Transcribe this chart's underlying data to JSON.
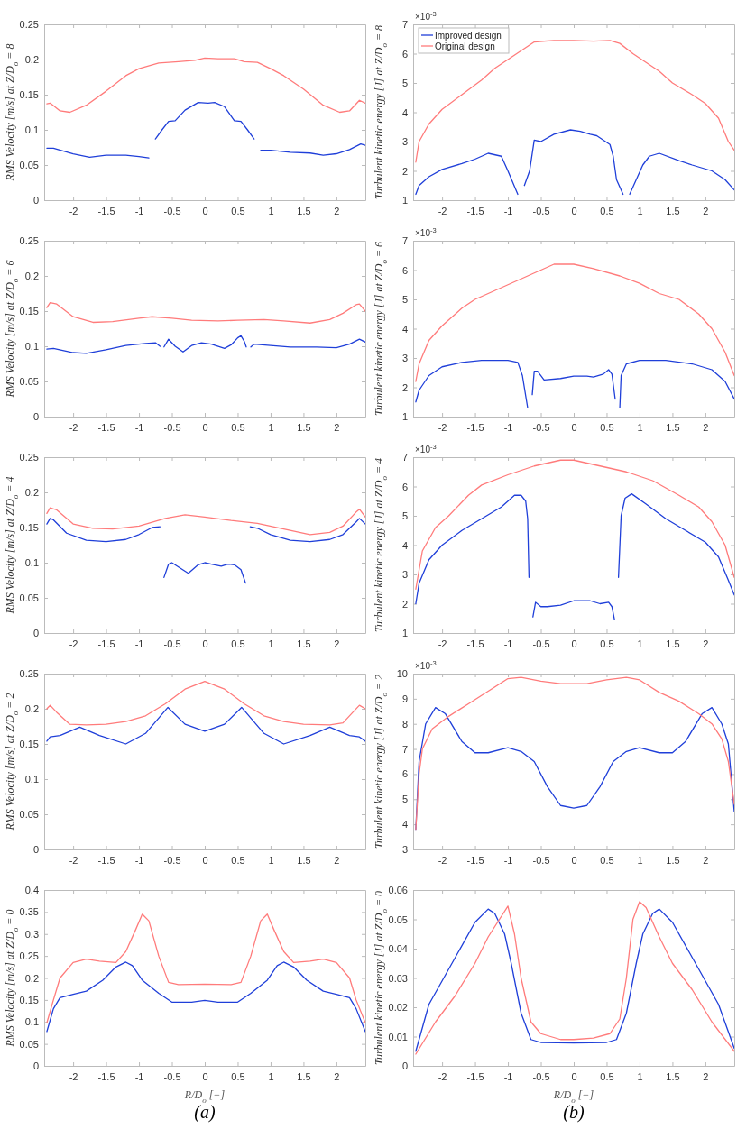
{
  "chart_data": [
    {
      "type": "line",
      "ylabel": "RMS Velocity [m/s] at Z/D$_{o}$ = 8",
      "xlim": [
        -2.44,
        2.44
      ],
      "xticks": [
        -2,
        -1.5,
        -1,
        -0.5,
        0,
        0.5,
        1,
        1.5,
        2
      ],
      "ylim": [
        0,
        0.25
      ],
      "yticks": [
        0,
        0.05,
        0.1,
        0.15,
        0.2,
        0.25
      ],
      "series": [
        {
          "color": "#1f3fd9",
          "x": [
            -2.4,
            -2.3,
            -2.0,
            -1.75,
            -1.5,
            -1.2,
            -1.0,
            -0.85,
            -0.8,
            -0.75,
            -0.65,
            -0.55,
            -0.45,
            -0.3,
            -0.1,
            0.05,
            0.15,
            0.3,
            0.45,
            0.55,
            0.65,
            0.75,
            0.8,
            0.85,
            1.0,
            1.3,
            1.6,
            1.8,
            2.0,
            2.2,
            2.37,
            2.44
          ],
          "values": [
            0.074,
            0.074,
            0.066,
            0.061,
            0.064,
            0.064,
            0.062,
            0.06,
            null,
            0.087,
            0.1,
            0.112,
            0.113,
            0.128,
            0.139,
            0.138,
            0.139,
            0.133,
            0.113,
            0.112,
            0.1,
            0.087,
            null,
            0.071,
            0.071,
            0.068,
            0.067,
            0.064,
            0.066,
            0.072,
            0.08,
            0.078
          ]
        },
        {
          "color": "#ff7b7b",
          "x": [
            -2.4,
            -2.35,
            -2.2,
            -2.05,
            -1.8,
            -1.5,
            -1.2,
            -1.0,
            -0.7,
            -0.4,
            -0.15,
            0,
            0.2,
            0.45,
            0.6,
            0.8,
            1.0,
            1.2,
            1.5,
            1.8,
            2.05,
            2.2,
            2.35,
            2.44
          ],
          "values": [
            0.137,
            0.138,
            0.127,
            0.125,
            0.135,
            0.155,
            0.177,
            0.187,
            0.195,
            0.197,
            0.199,
            0.202,
            0.201,
            0.201,
            0.197,
            0.196,
            0.187,
            0.177,
            0.158,
            0.135,
            0.125,
            0.127,
            0.142,
            0.138
          ]
        }
      ]
    },
    {
      "type": "line",
      "ylabel": "Turbulent kinetic energy [J] at Z/D$_{o}$ = 8",
      "legend": "top left",
      "annotations": [
        "×10$^{-3}$"
      ],
      "xlim": [
        -2.44,
        2.44
      ],
      "xticks": [
        -2,
        -1.5,
        -1,
        -0.5,
        0,
        0.5,
        1,
        1.5,
        2
      ],
      "ylim": [
        1,
        7
      ],
      "yticks": [
        1,
        2,
        3,
        4,
        5,
        6,
        7
      ],
      "series": [
        {
          "name": "Improved design",
          "color": "#1f3fd9",
          "x": [
            -2.4,
            -2.35,
            -2.2,
            -2.0,
            -1.7,
            -1.5,
            -1.3,
            -1.1,
            -1.0,
            -0.85,
            -0.8,
            -0.75,
            -0.67,
            -0.6,
            -0.5,
            -0.3,
            -0.05,
            0.1,
            0.25,
            0.35,
            0.55,
            0.6,
            0.65,
            0.75,
            0.8,
            0.85,
            1.05,
            1.15,
            1.3,
            1.6,
            1.8,
            2.1,
            2.3,
            2.44
          ],
          "values": [
            1.2,
            1.5,
            1.8,
            2.05,
            2.25,
            2.4,
            2.6,
            2.5,
            2.0,
            1.2,
            null,
            1.5,
            2.0,
            3.05,
            3.0,
            3.25,
            3.4,
            3.35,
            3.25,
            3.2,
            2.9,
            2.5,
            1.7,
            1.2,
            null,
            1.2,
            2.2,
            2.5,
            2.6,
            2.35,
            2.2,
            2.0,
            1.7,
            1.35
          ]
        },
        {
          "name": "Original design",
          "color": "#ff7b7b",
          "x": [
            -2.4,
            -2.35,
            -2.2,
            -2.0,
            -1.7,
            -1.4,
            -1.2,
            -1.0,
            -0.8,
            -0.6,
            -0.3,
            0,
            0.3,
            0.55,
            0.7,
            0.9,
            1.1,
            1.3,
            1.5,
            1.8,
            2.0,
            2.2,
            2.35,
            2.44
          ],
          "values": [
            2.3,
            3.0,
            3.6,
            4.1,
            4.6,
            5.1,
            5.5,
            5.8,
            6.1,
            6.4,
            6.45,
            6.45,
            6.43,
            6.45,
            6.35,
            6.0,
            5.7,
            5.4,
            5.0,
            4.6,
            4.3,
            3.8,
            3.0,
            2.7
          ]
        }
      ]
    },
    {
      "type": "line",
      "ylabel": "RMS Velocity [m/s] at Z/D$_{o}$ = 6",
      "xlim": [
        -2.44,
        2.44
      ],
      "xticks": [
        -2,
        -1.5,
        -1,
        -0.5,
        0,
        0.5,
        1,
        1.5,
        2
      ],
      "ylim": [
        0,
        0.25
      ],
      "yticks": [
        0,
        0.05,
        0.1,
        0.15,
        0.2,
        0.25
      ],
      "series": [
        {
          "color": "#1f3fd9",
          "x": [
            -2.4,
            -2.3,
            -2.0,
            -1.8,
            -1.5,
            -1.2,
            -0.9,
            -0.75,
            -0.68,
            -0.66,
            -0.62,
            -0.55,
            -0.45,
            -0.33,
            -0.2,
            -0.05,
            0.1,
            0.3,
            0.4,
            0.5,
            0.55,
            0.6,
            0.63,
            0.66,
            0.7,
            0.75,
            1.0,
            1.3,
            1.7,
            2.0,
            2.2,
            2.35,
            2.44
          ],
          "values": [
            0.096,
            0.097,
            0.091,
            0.09,
            0.095,
            0.101,
            0.104,
            0.105,
            0.1,
            null,
            0.099,
            0.11,
            0.1,
            0.092,
            0.101,
            0.105,
            0.103,
            0.097,
            0.102,
            0.112,
            0.115,
            0.107,
            0.099,
            null,
            0.099,
            0.103,
            0.101,
            0.099,
            0.099,
            0.098,
            0.103,
            0.11,
            0.106
          ]
        },
        {
          "color": "#ff7b7b",
          "x": [
            -2.4,
            -2.35,
            -2.25,
            -2.0,
            -1.7,
            -1.4,
            -1.0,
            -0.8,
            -0.5,
            -0.2,
            0.2,
            0.5,
            0.9,
            1.2,
            1.6,
            1.9,
            2.1,
            2.3,
            2.35,
            2.44
          ],
          "values": [
            0.155,
            0.162,
            0.16,
            0.142,
            0.134,
            0.135,
            0.14,
            0.142,
            0.14,
            0.137,
            0.136,
            0.137,
            0.138,
            0.136,
            0.133,
            0.138,
            0.147,
            0.159,
            0.16,
            0.15
          ]
        }
      ]
    },
    {
      "type": "line",
      "ylabel": "Turbulent kinetic energy [J] at Z/D$_{o}$ = 6",
      "annotations": [
        "×10$^{-3}$"
      ],
      "xlim": [
        -2.44,
        2.44
      ],
      "xticks": [
        -2,
        -1.5,
        -1,
        -0.5,
        0,
        0.5,
        1,
        1.5,
        2
      ],
      "ylim": [
        1,
        7
      ],
      "yticks": [
        1,
        2,
        3,
        4,
        5,
        6,
        7
      ],
      "series": [
        {
          "color": "#1f3fd9",
          "x": [
            -2.4,
            -2.35,
            -2.2,
            -2.0,
            -1.7,
            -1.4,
            -1.0,
            -0.85,
            -0.78,
            -0.7,
            -0.68,
            -0.63,
            -0.6,
            -0.55,
            -0.45,
            -0.2,
            0,
            0.2,
            0.3,
            0.45,
            0.53,
            0.58,
            0.63,
            0.66,
            0.7,
            0.72,
            0.8,
            1.0,
            1.4,
            1.8,
            2.1,
            2.3,
            2.44
          ],
          "values": [
            1.5,
            1.9,
            2.4,
            2.7,
            2.85,
            2.92,
            2.92,
            2.85,
            2.4,
            1.3,
            null,
            1.75,
            2.55,
            2.55,
            2.25,
            2.3,
            2.38,
            2.38,
            2.35,
            2.45,
            2.6,
            2.45,
            1.6,
            null,
            1.3,
            2.4,
            2.8,
            2.92,
            2.92,
            2.8,
            2.6,
            2.2,
            1.6
          ]
        },
        {
          "color": "#ff7b7b",
          "x": [
            -2.4,
            -2.35,
            -2.2,
            -2.0,
            -1.7,
            -1.5,
            -1.2,
            -0.9,
            -0.6,
            -0.3,
            0,
            0.3,
            0.7,
            1.0,
            1.3,
            1.6,
            1.9,
            2.1,
            2.3,
            2.44
          ],
          "values": [
            2.2,
            2.8,
            3.6,
            4.1,
            4.7,
            5.0,
            5.3,
            5.6,
            5.9,
            6.2,
            6.2,
            6.05,
            5.8,
            5.55,
            5.2,
            5.0,
            4.5,
            4.0,
            3.2,
            2.4
          ]
        }
      ]
    },
    {
      "type": "line",
      "ylabel": "RMS Velocity [m/s] at Z/D$_{o}$ = 4",
      "xlim": [
        -2.44,
        2.44
      ],
      "xticks": [
        -2,
        -1.5,
        -1,
        -0.5,
        0,
        0.5,
        1,
        1.5,
        2
      ],
      "ylim": [
        0,
        0.25
      ],
      "yticks": [
        0,
        0.05,
        0.1,
        0.15,
        0.2,
        0.25
      ],
      "series": [
        {
          "color": "#1f3fd9",
          "x": [
            -2.4,
            -2.35,
            -2.3,
            -2.1,
            -1.8,
            -1.5,
            -1.2,
            -1.0,
            -0.8,
            -0.68,
            -0.65,
            -0.62,
            -0.55,
            -0.5,
            -0.4,
            -0.25,
            -0.1,
            0,
            0.1,
            0.25,
            0.35,
            0.45,
            0.55,
            0.62,
            0.65,
            0.69,
            0.8,
            1.0,
            1.3,
            1.6,
            1.9,
            2.1,
            2.3,
            2.35,
            2.44
          ],
          "values": [
            0.155,
            0.163,
            0.161,
            0.142,
            0.132,
            0.13,
            0.133,
            0.14,
            0.15,
            0.151,
            null,
            0.079,
            0.098,
            0.1,
            0.094,
            0.085,
            0.097,
            0.1,
            0.098,
            0.095,
            0.098,
            0.097,
            0.09,
            0.071,
            null,
            0.151,
            0.149,
            0.14,
            0.132,
            0.13,
            0.133,
            0.14,
            0.158,
            0.163,
            0.155
          ]
        },
        {
          "color": "#ff7b7b",
          "x": [
            -2.4,
            -2.35,
            -2.25,
            -2.0,
            -1.7,
            -1.4,
            -1.0,
            -0.6,
            -0.3,
            0,
            0.4,
            0.8,
            1.2,
            1.6,
            1.9,
            2.1,
            2.3,
            2.35,
            2.44
          ],
          "values": [
            0.17,
            0.178,
            0.175,
            0.155,
            0.149,
            0.148,
            0.152,
            0.163,
            0.168,
            0.165,
            0.16,
            0.156,
            0.148,
            0.14,
            0.143,
            0.152,
            0.172,
            0.176,
            0.165
          ]
        }
      ]
    },
    {
      "type": "line",
      "ylabel": "Turbulent kinetic energy [J] at Z/D$_{o}$ = 4",
      "annotations": [
        "×10$^{-3}$"
      ],
      "xlim": [
        -2.44,
        2.44
      ],
      "xticks": [
        -2,
        -1.5,
        -1,
        -0.5,
        0,
        0.5,
        1,
        1.5,
        2
      ],
      "ylim": [
        1,
        7
      ],
      "yticks": [
        1,
        2,
        3,
        4,
        5,
        6,
        7
      ],
      "series": [
        {
          "color": "#1f3fd9",
          "x": [
            -2.4,
            -2.35,
            -2.2,
            -2.0,
            -1.7,
            -1.4,
            -1.1,
            -0.9,
            -0.8,
            -0.73,
            -0.7,
            -0.68,
            -0.66,
            -0.62,
            -0.58,
            -0.5,
            -0.4,
            -0.2,
            0,
            0.25,
            0.4,
            0.53,
            0.58,
            0.62,
            0.65,
            0.68,
            0.72,
            0.78,
            0.88,
            1.1,
            1.4,
            1.7,
            2.0,
            2.2,
            2.35,
            2.44
          ],
          "values": [
            2.0,
            2.7,
            3.5,
            4.0,
            4.5,
            4.9,
            5.3,
            5.7,
            5.7,
            5.5,
            4.9,
            2.9,
            null,
            1.55,
            2.05,
            1.9,
            1.9,
            1.95,
            2.1,
            2.1,
            2.0,
            2.05,
            1.9,
            1.45,
            null,
            2.9,
            5.0,
            5.6,
            5.75,
            5.4,
            4.9,
            4.5,
            4.1,
            3.6,
            2.8,
            2.3
          ]
        },
        {
          "color": "#ff7b7b",
          "x": [
            -2.4,
            -2.3,
            -2.1,
            -1.9,
            -1.6,
            -1.4,
            -1.0,
            -0.6,
            -0.2,
            0,
            0.4,
            0.8,
            1.2,
            1.6,
            1.9,
            2.1,
            2.3,
            2.44
          ],
          "values": [
            2.5,
            3.8,
            4.6,
            5.0,
            5.7,
            6.05,
            6.4,
            6.7,
            6.9,
            6.9,
            6.7,
            6.5,
            6.2,
            5.7,
            5.3,
            4.8,
            4.0,
            2.9
          ]
        }
      ]
    },
    {
      "type": "line",
      "ylabel": "RMS Velocity [m/s] at Z/D$_{o}$ = 2",
      "xlim": [
        -2.44,
        2.44
      ],
      "xticks": [
        -2,
        -1.5,
        -1,
        -0.5,
        0,
        0.5,
        1,
        1.5,
        2
      ],
      "ylim": [
        0,
        0.25
      ],
      "yticks": [
        0,
        0.05,
        0.1,
        0.15,
        0.2,
        0.25
      ],
      "series": [
        {
          "color": "#1f3fd9",
          "x": [
            -2.4,
            -2.35,
            -2.2,
            -1.9,
            -1.6,
            -1.2,
            -0.9,
            -0.56,
            -0.3,
            0,
            0.3,
            0.56,
            0.9,
            1.2,
            1.6,
            1.9,
            2.2,
            2.35,
            2.44
          ],
          "values": [
            0.154,
            0.16,
            0.162,
            0.174,
            0.162,
            0.15,
            0.165,
            0.202,
            0.178,
            0.168,
            0.178,
            0.202,
            0.165,
            0.15,
            0.162,
            0.174,
            0.162,
            0.16,
            0.154
          ]
        },
        {
          "color": "#ff7b7b",
          "x": [
            -2.4,
            -2.35,
            -2.25,
            -2.05,
            -1.8,
            -1.5,
            -1.2,
            -0.9,
            -0.6,
            -0.3,
            0,
            0.3,
            0.6,
            0.9,
            1.2,
            1.5,
            1.9,
            2.1,
            2.25,
            2.35,
            2.44
          ],
          "values": [
            0.2,
            0.205,
            0.195,
            0.178,
            0.177,
            0.178,
            0.182,
            0.19,
            0.207,
            0.228,
            0.239,
            0.228,
            0.207,
            0.19,
            0.182,
            0.178,
            0.177,
            0.18,
            0.195,
            0.205,
            0.2
          ]
        }
      ]
    },
    {
      "type": "line",
      "ylabel": "Turbulent kinetic energy [J] at Z/D$_{o}$ = 2",
      "annotations": [
        "×10$^{-3}$"
      ],
      "xlim": [
        -2.44,
        2.44
      ],
      "xticks": [
        -2,
        -1.5,
        -1,
        -0.5,
        0,
        0.5,
        1,
        1.5,
        2
      ],
      "ylim": [
        3,
        10
      ],
      "yticks": [
        3,
        4,
        5,
        6,
        7,
        8,
        9,
        10
      ],
      "series": [
        {
          "color": "#1f3fd9",
          "x": [
            -2.4,
            -2.35,
            -2.25,
            -2.1,
            -1.95,
            -1.7,
            -1.5,
            -1.3,
            -1.0,
            -0.8,
            -0.6,
            -0.4,
            -0.2,
            0,
            0.2,
            0.4,
            0.6,
            0.8,
            1.0,
            1.3,
            1.5,
            1.7,
            1.95,
            2.1,
            2.25,
            2.35,
            2.44
          ],
          "values": [
            3.8,
            6.5,
            8.0,
            8.65,
            8.4,
            7.3,
            6.85,
            6.85,
            7.05,
            6.9,
            6.5,
            5.5,
            4.75,
            4.65,
            4.75,
            5.5,
            6.5,
            6.9,
            7.05,
            6.85,
            6.85,
            7.3,
            8.4,
            8.65,
            8.0,
            7.2,
            4.5
          ]
        },
        {
          "color": "#ff7b7b",
          "x": [
            -2.4,
            -2.35,
            -2.3,
            -2.15,
            -1.9,
            -1.6,
            -1.3,
            -1.0,
            -0.8,
            -0.5,
            -0.2,
            0,
            0.2,
            0.5,
            0.8,
            1.0,
            1.3,
            1.6,
            1.9,
            2.1,
            2.25,
            2.35,
            2.44
          ],
          "values": [
            3.8,
            6.0,
            7.0,
            7.8,
            8.3,
            8.8,
            9.3,
            9.8,
            9.85,
            9.7,
            9.6,
            9.6,
            9.6,
            9.75,
            9.85,
            9.75,
            9.25,
            8.9,
            8.4,
            8.0,
            7.4,
            6.5,
            4.8
          ]
        }
      ]
    },
    {
      "type": "line",
      "ylabel": "RMS Velocity [m/s] at Z/D$_{o}$ = 0",
      "xlabel": "R/D$_{o}$ [−]",
      "annotations": [
        "(a)"
      ],
      "xlim": [
        -2.44,
        2.44
      ],
      "xticks": [
        -2,
        -1.5,
        -1,
        -0.5,
        0,
        0.5,
        1,
        1.5,
        2
      ],
      "ylim": [
        0,
        0.4
      ],
      "yticks": [
        0,
        0.05,
        0.1,
        0.15,
        0.2,
        0.25,
        0.3,
        0.35,
        0.4
      ],
      "series": [
        {
          "color": "#1f3fd9",
          "x": [
            -2.4,
            -2.3,
            -2.2,
            -2.0,
            -1.8,
            -1.55,
            -1.35,
            -1.2,
            -1.1,
            -0.95,
            -0.7,
            -0.5,
            -0.2,
            0,
            0.2,
            0.5,
            0.7,
            0.95,
            1.1,
            1.2,
            1.35,
            1.55,
            1.8,
            2.0,
            2.2,
            2.3,
            2.44
          ],
          "values": [
            0.078,
            0.13,
            0.155,
            0.163,
            0.17,
            0.195,
            0.225,
            0.236,
            0.228,
            0.195,
            0.165,
            0.145,
            0.145,
            0.149,
            0.145,
            0.145,
            0.165,
            0.195,
            0.228,
            0.236,
            0.225,
            0.195,
            0.17,
            0.163,
            0.155,
            0.13,
            0.078
          ]
        },
        {
          "color": "#ff7b7b",
          "x": [
            -2.4,
            -2.3,
            -2.2,
            -2.0,
            -1.8,
            -1.6,
            -1.35,
            -1.2,
            -1.05,
            -0.95,
            -0.85,
            -0.7,
            -0.55,
            -0.4,
            0,
            0.4,
            0.55,
            0.7,
            0.85,
            0.95,
            1.05,
            1.2,
            1.35,
            1.6,
            1.8,
            2.0,
            2.2,
            2.3,
            2.44
          ],
          "values": [
            0.098,
            0.15,
            0.2,
            0.235,
            0.243,
            0.238,
            0.235,
            0.26,
            0.31,
            0.345,
            0.33,
            0.25,
            0.19,
            0.185,
            0.186,
            0.185,
            0.19,
            0.25,
            0.33,
            0.345,
            0.31,
            0.26,
            0.235,
            0.238,
            0.243,
            0.235,
            0.2,
            0.15,
            0.098
          ]
        }
      ]
    },
    {
      "type": "line",
      "ylabel": "Turbulent kinetic energy [J] at Z/D$_{o}$ = 0",
      "xlabel": "R/D$_{o}$ [−]",
      "annotations": [
        "(b)"
      ],
      "xlim": [
        -2.44,
        2.44
      ],
      "xticks": [
        -2,
        -1.5,
        -1,
        -0.5,
        0,
        0.5,
        1,
        1.5,
        2
      ],
      "ylim": [
        0,
        0.06
      ],
      "yticks": [
        0,
        0.01,
        0.02,
        0.03,
        0.04,
        0.05,
        0.06
      ],
      "series": [
        {
          "color": "#1f3fd9",
          "x": [
            -2.4,
            -2.2,
            -1.8,
            -1.5,
            -1.3,
            -1.2,
            -1.05,
            -0.95,
            -0.8,
            -0.65,
            -0.5,
            0,
            0.5,
            0.65,
            0.8,
            0.95,
            1.05,
            1.2,
            1.3,
            1.5,
            1.8,
            2.2,
            2.44
          ],
          "values": [
            0.005,
            0.021,
            0.037,
            0.049,
            0.0535,
            0.052,
            0.045,
            0.035,
            0.018,
            0.009,
            0.008,
            0.0078,
            0.008,
            0.009,
            0.018,
            0.035,
            0.045,
            0.052,
            0.0535,
            0.049,
            0.037,
            0.021,
            0.006
          ]
        },
        {
          "color": "#ff7b7b",
          "x": [
            -2.4,
            -2.1,
            -1.8,
            -1.5,
            -1.3,
            -1.1,
            -1.0,
            -0.9,
            -0.8,
            -0.65,
            -0.5,
            -0.2,
            0,
            0.3,
            0.55,
            0.7,
            0.8,
            0.9,
            1.0,
            1.1,
            1.3,
            1.5,
            1.8,
            2.1,
            2.44
          ],
          "values": [
            0.004,
            0.015,
            0.024,
            0.035,
            0.044,
            0.051,
            0.0545,
            0.045,
            0.03,
            0.015,
            0.011,
            0.009,
            0.009,
            0.0095,
            0.011,
            0.016,
            0.03,
            0.05,
            0.056,
            0.054,
            0.044,
            0.035,
            0.026,
            0.015,
            0.005
          ]
        }
      ]
    }
  ]
}
